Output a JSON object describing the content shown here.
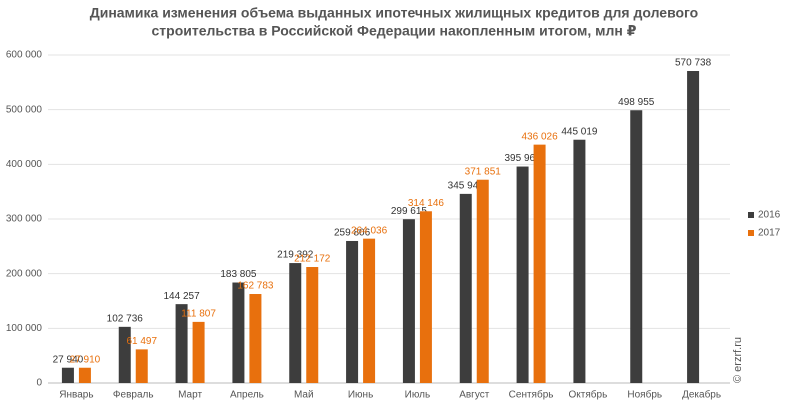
{
  "chart_data": {
    "type": "bar",
    "title": [
      "Динамика изменения объема выданных ипотечных жилищных кредитов для долевого",
      "строительства  в Российской Федерации накопленным итогом, млн ₽"
    ],
    "categories": [
      "Январь",
      "Февраль",
      "Март",
      "Апрель",
      "Май",
      "Июнь",
      "Июль",
      "Август",
      "Сентябрь",
      "Октябрь",
      "Ноябрь",
      "Декабрь"
    ],
    "series": [
      {
        "name": "2016",
        "color": "#3d3d3d",
        "values": [
          27940,
          102736,
          144257,
          183805,
          219392,
          259806,
          299615,
          345942,
          395961,
          445019,
          498955,
          570738
        ],
        "value_labels": [
          "27 940",
          "102 736",
          "144 257",
          "183 805",
          "219 392",
          "259 806",
          "299 615",
          "345 942",
          "395 961",
          "445 019",
          "498 955",
          "570 738"
        ]
      },
      {
        "name": "2017",
        "color": "#e8700d",
        "values": [
          27910,
          61497,
          111807,
          162783,
          212172,
          264036,
          314146,
          371851,
          436026,
          null,
          null,
          null
        ],
        "value_labels": [
          "27 910",
          "61 497",
          "111 807",
          "162 783",
          "212 172",
          "264 036",
          "314 146",
          "371 851",
          "436 026",
          null,
          null,
          null
        ]
      }
    ],
    "ylim": [
      0,
      600000
    ],
    "yticks": [
      0,
      {
        "value": 100000,
        "label": "100 000"
      },
      {
        "value": 200000,
        "label": "200 000"
      },
      {
        "value": 300000,
        "label": "300 000"
      },
      {
        "value": 400000,
        "label": "400 000"
      },
      {
        "value": 500000,
        "label": "500 000"
      },
      {
        "value": 600000,
        "label": "600 000"
      }
    ],
    "grid": true,
    "legend": "right",
    "watermark": "© erzrf.ru"
  }
}
